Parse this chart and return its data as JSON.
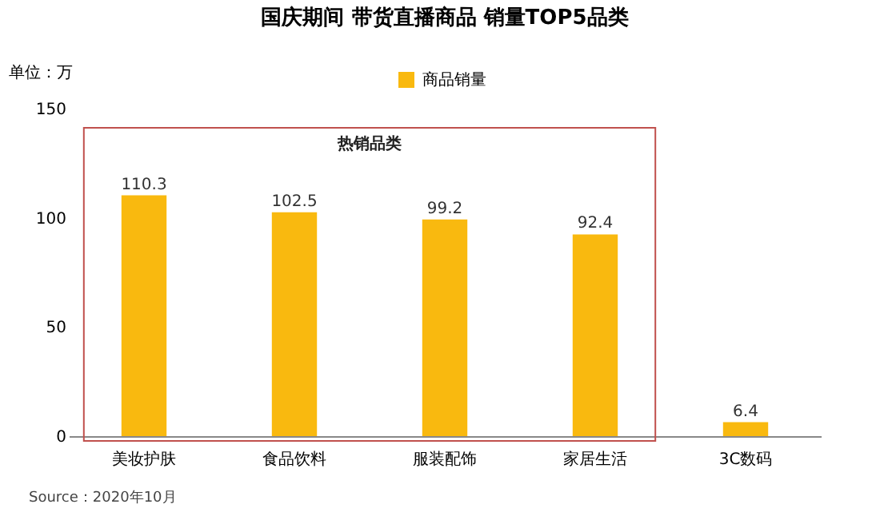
{
  "chart_data": {
    "type": "bar",
    "title": "国庆期间 带货直播商品 销量TOP5品类",
    "ylabel": "单位：万",
    "categories": [
      "美妆护肤",
      "食品饮料",
      "服装配饰",
      "家居生活",
      "3C数码"
    ],
    "series": [
      {
        "name": "商品销量",
        "color": "#f9b90f",
        "values": [
          110.3,
          102.5,
          99.2,
          92.4,
          6.4
        ]
      }
    ],
    "ylim": [
      0,
      150
    ],
    "yticks": [
      0,
      50,
      100,
      150
    ],
    "grid": false,
    "legend": "top",
    "data_labels": true,
    "annotations": [
      "热销品类",
      "Source：2020年10月"
    ]
  }
}
